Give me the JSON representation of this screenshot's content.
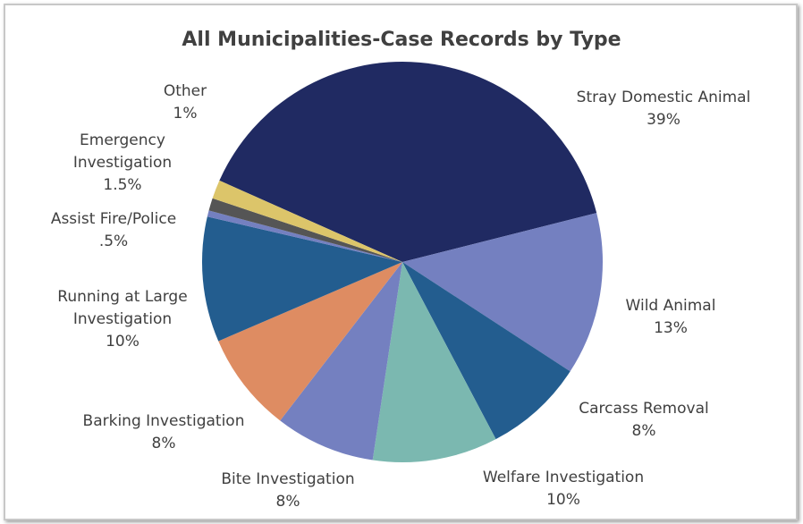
{
  "chart_data": {
    "type": "pie",
    "title": "All Municipalities-Case Records by Type",
    "categories": [
      "Stray Domestic Animal",
      "Wild Animal",
      "Carcass Removal",
      "Welfare Investigation",
      "Bite Investigation",
      "Barking Investigation",
      "Running at Large Investigation",
      "Assist Fire/Police",
      "Other",
      "Emergency Investigation"
    ],
    "values": [
      39,
      13,
      8,
      10,
      8,
      8,
      10,
      0.5,
      1,
      1.5
    ],
    "value_labels": [
      "39%",
      "13%",
      "8%",
      "10%",
      "8%",
      "8%",
      "10%",
      ".5%",
      "1%",
      "1.5%"
    ],
    "colors": [
      "#202a62",
      "#7480c0",
      "#235d8f",
      "#7bb8b0",
      "#7480c0",
      "#de8c62",
      "#235d8f",
      "#7480c0",
      "#555555",
      "#dcc56a"
    ]
  }
}
